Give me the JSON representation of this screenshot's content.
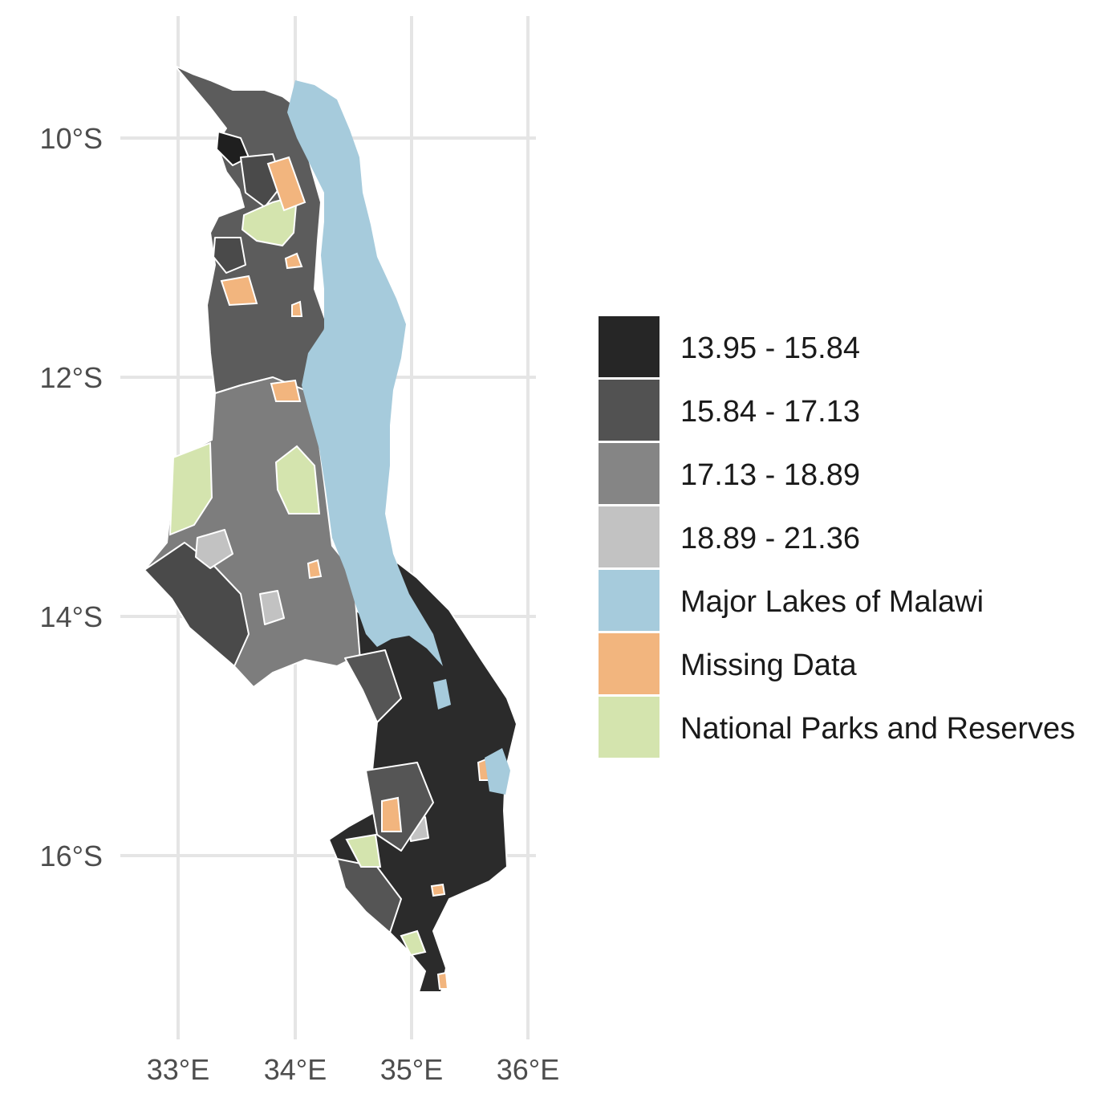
{
  "map": {
    "axes": {
      "x_ticks": [
        "33°E",
        "34°E",
        "35°E",
        "36°E"
      ],
      "y_ticks": [
        "10°S",
        "12°S",
        "14°S",
        "16°S"
      ]
    },
    "grid": true,
    "legend": {
      "position": "right",
      "items": [
        {
          "label": "13.95 - 15.84",
          "color": "#262626"
        },
        {
          "label": "15.84 - 17.13",
          "color": "#525252"
        },
        {
          "label": "17.13 - 18.89",
          "color": "#858585"
        },
        {
          "label": "18.89 - 21.36",
          "color": "#c2c2c2"
        },
        {
          "label": "Major Lakes of Malawi",
          "color": "#a6cbdc"
        },
        {
          "label": "Missing Data",
          "color": "#f2b57e"
        },
        {
          "label": "National Parks and Reserves",
          "color": "#d4e4ae"
        }
      ]
    }
  }
}
